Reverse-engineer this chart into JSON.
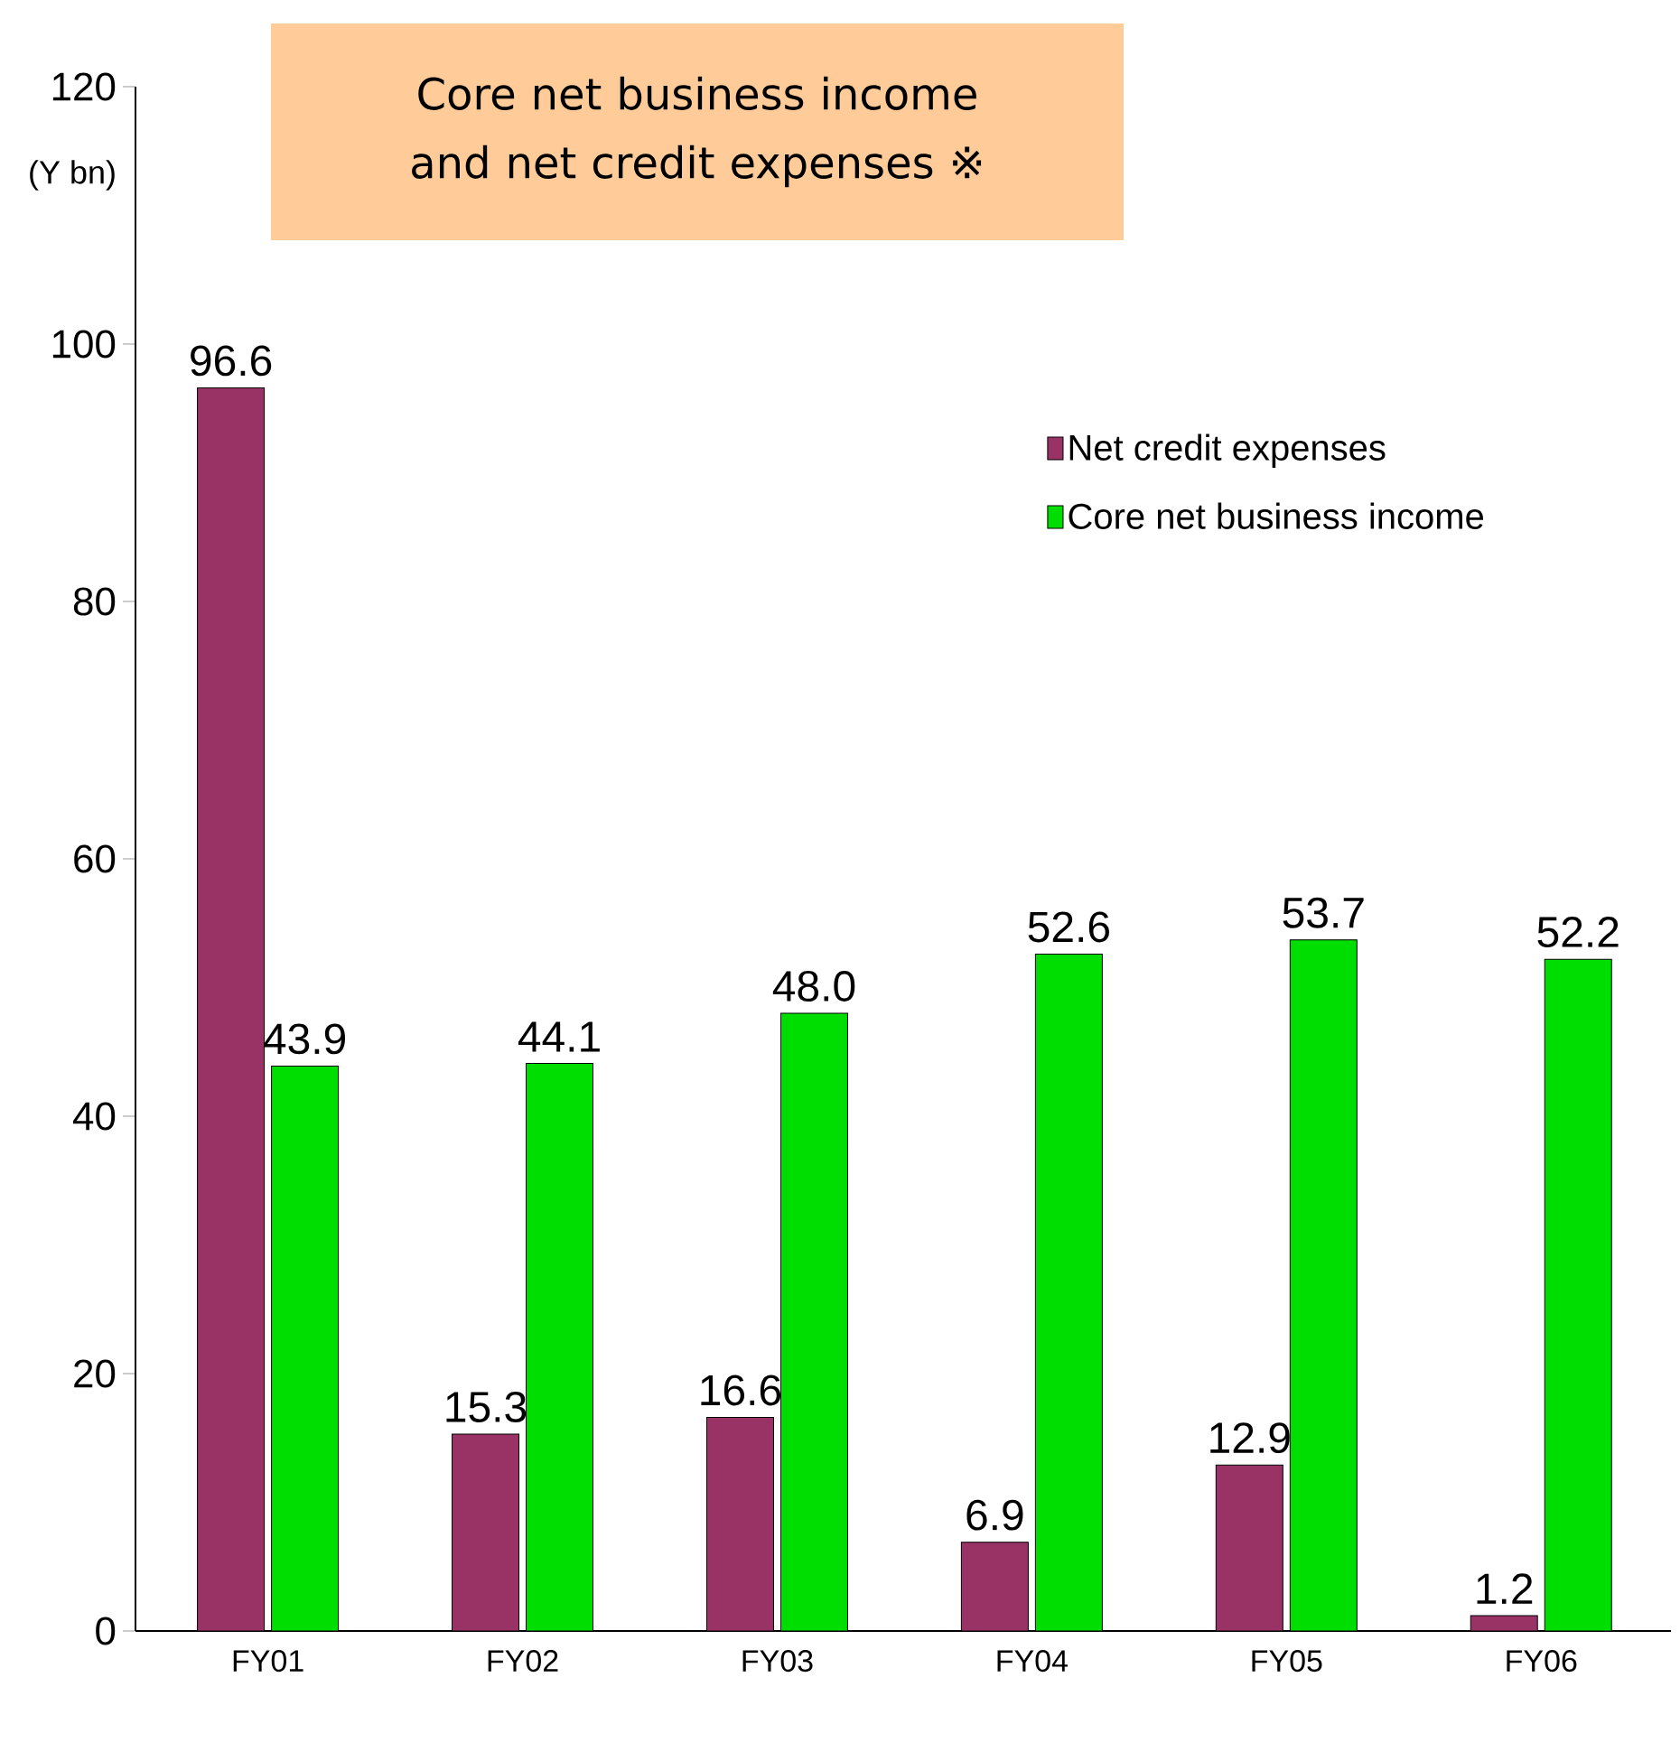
{
  "chart_data": {
    "type": "bar",
    "title": "Core net business income and net credit expenses ※",
    "ylabel": "(Y bn)",
    "categories": [
      "FY01",
      "FY02",
      "FY03",
      "FY04",
      "FY05",
      "FY06"
    ],
    "series": [
      {
        "name": "Net credit expenses",
        "color": "#993366",
        "values": [
          96.6,
          15.3,
          16.6,
          6.9,
          12.9,
          1.2
        ],
        "value_labels": [
          "96.6",
          "15.3",
          "16.6",
          "6.9",
          "12.9",
          "1.2"
        ]
      },
      {
        "name": "Core net business income",
        "color": "#00dd00",
        "values": [
          43.9,
          44.1,
          48.0,
          52.6,
          53.7,
          52.2
        ],
        "value_labels": [
          "43.9",
          "44.1",
          "48.0",
          "52.6",
          "53.7",
          "52.2"
        ]
      }
    ],
    "ylim": [
      0,
      120
    ],
    "yticks": [
      0,
      20,
      40,
      60,
      80,
      100,
      120
    ],
    "legend": "top right",
    "grid": false
  }
}
